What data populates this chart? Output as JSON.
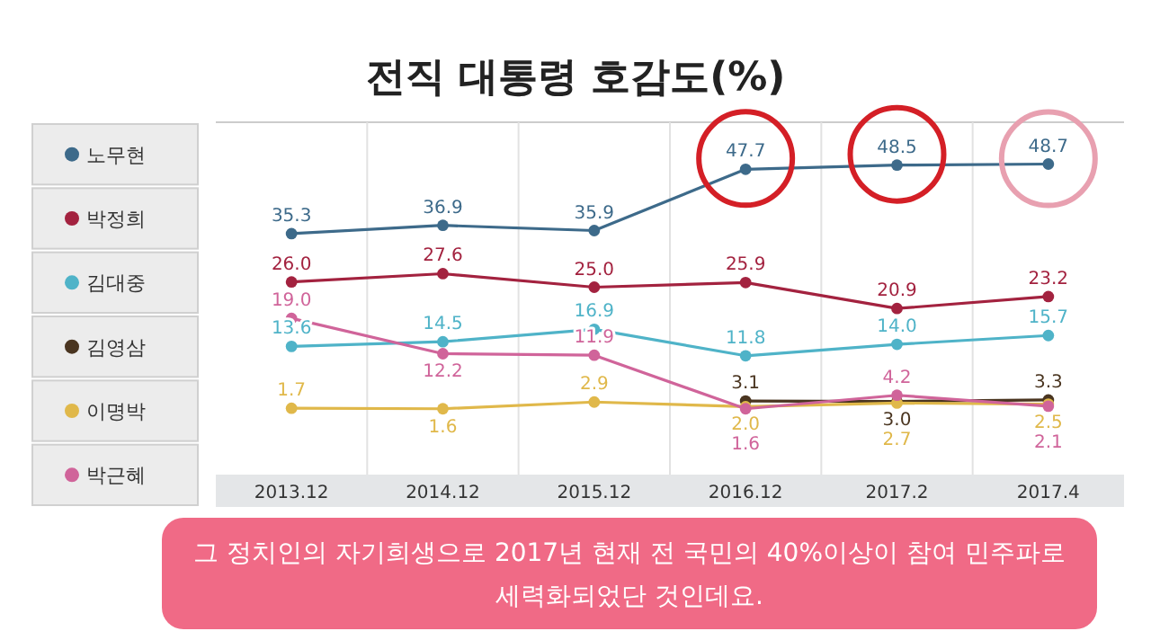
{
  "chart_data": {
    "type": "line",
    "title": "전직 대통령 호감도(%)",
    "categories": [
      "2013.12",
      "2014.12",
      "2015.12",
      "2016.12",
      "2017.2",
      "2017.4"
    ],
    "series": [
      {
        "name": "노무현",
        "color": "#3d6a8a",
        "values": [
          35.3,
          36.9,
          35.9,
          47.7,
          48.5,
          48.7
        ],
        "value_labels": [
          "35.3",
          "36.9",
          "35.9",
          "47.7",
          "48.5",
          "48.7"
        ]
      },
      {
        "name": "박정희",
        "color": "#a3223f",
        "values": [
          26.0,
          27.6,
          25.0,
          25.9,
          20.9,
          23.2
        ],
        "value_labels": [
          "26.0",
          "27.6",
          "25.0",
          "25.9",
          "20.9",
          "23.2"
        ]
      },
      {
        "name": "김대중",
        "color": "#4fb3c8",
        "values": [
          13.6,
          14.5,
          16.9,
          11.8,
          14.0,
          15.7
        ],
        "value_labels": [
          "13.6",
          "14.5",
          "16.9",
          "11.8",
          "14.0",
          "15.7"
        ]
      },
      {
        "name": "김영삼",
        "color": "#4a3520",
        "values": [
          null,
          null,
          null,
          3.1,
          3.0,
          3.3
        ],
        "value_labels": [
          null,
          null,
          null,
          "3.1",
          "3.0",
          "3.3"
        ]
      },
      {
        "name": "이명박",
        "color": "#e0b84a",
        "values": [
          1.7,
          1.6,
          2.9,
          2.0,
          2.7,
          2.5
        ],
        "value_labels": [
          "1.7",
          "1.6",
          "2.9",
          "2.0",
          "2.7",
          "2.5"
        ]
      },
      {
        "name": "박근혜",
        "color": "#d0649a",
        "values": [
          19.0,
          12.2,
          11.9,
          1.6,
          4.2,
          2.1
        ],
        "value_labels": [
          "19.0",
          "12.2",
          "11.9",
          "1.6",
          "4.2",
          "2.1"
        ]
      }
    ],
    "data_labels": true,
    "marker": "circle",
    "legend": "left",
    "grid": "x",
    "annotations": [
      "그 정치인의 자기희생으로 2017년 현재 전 국민의 40%이상이 참여 민주파로 세력화되었단 것인데요."
    ]
  }
}
